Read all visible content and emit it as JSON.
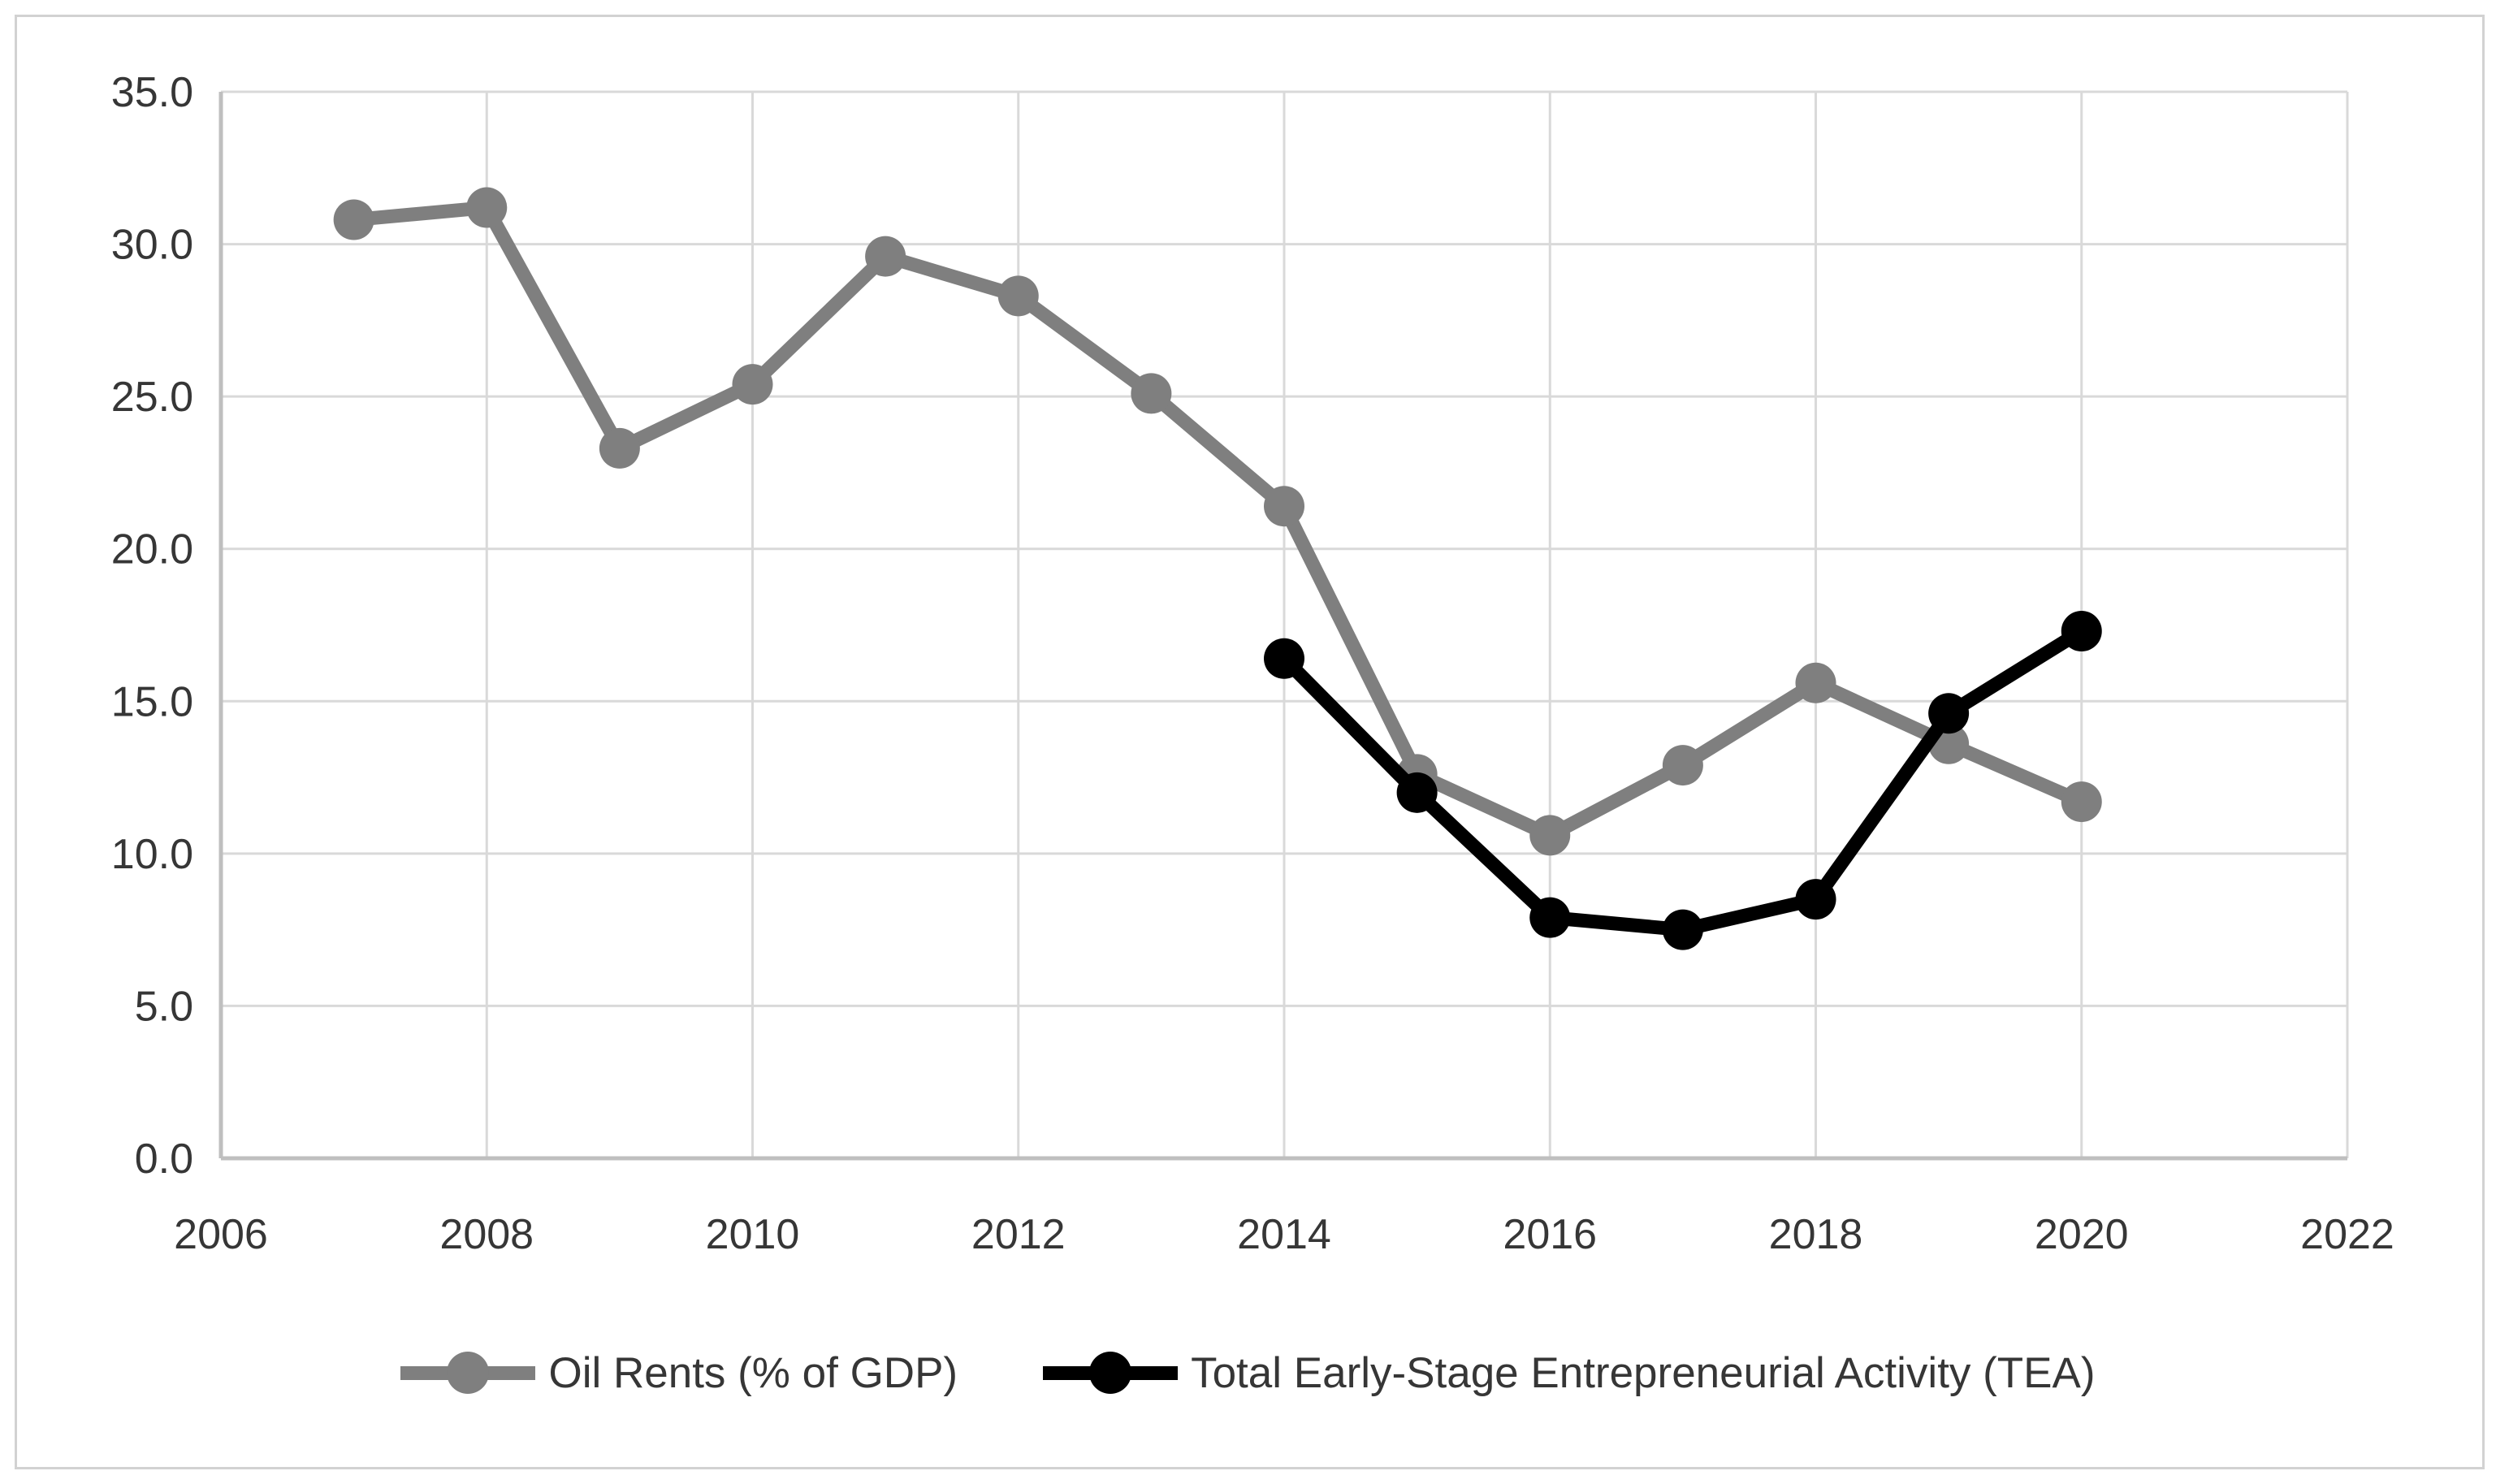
{
  "chart_data": {
    "type": "line",
    "title": "",
    "xlabel": "",
    "ylabel": "",
    "xlim": [
      2006,
      2022
    ],
    "ylim": [
      0,
      35
    ],
    "x_ticks": [
      2006,
      2008,
      2010,
      2012,
      2014,
      2016,
      2018,
      2020,
      2022
    ],
    "y_ticks": [
      "35.0",
      "30.0",
      "25.0",
      "20.0",
      "15.0",
      "10.0",
      "5.0",
      "0.0"
    ],
    "grid": true,
    "legend_position": "bottom",
    "style": {
      "grid_color": "#d9d9d9",
      "axis_color": "#bfbfbf",
      "tick_color": "#363636",
      "background": "#ffffff"
    },
    "series": [
      {
        "name": "Oil Rents (% of GDP)",
        "color": "#7f7f7f",
        "marker": "circle",
        "x": [
          2007,
          2008,
          2009,
          2010,
          2011,
          2012,
          2013,
          2014,
          2015,
          2016,
          2017,
          2018,
          2019,
          2020
        ],
        "values": [
          30.8,
          31.2,
          23.3,
          25.4,
          29.6,
          28.3,
          25.1,
          21.4,
          12.6,
          10.6,
          12.9,
          15.6,
          13.6,
          11.7
        ]
      },
      {
        "name": "Total Early-Stage Entrepreneurial Activity (TEA)",
        "color": "#000000",
        "marker": "circle",
        "x": [
          2014,
          2015,
          2016,
          2017,
          2018,
          2019,
          2020
        ],
        "values": [
          16.4,
          12.0,
          7.9,
          7.5,
          8.5,
          14.6,
          17.3
        ]
      }
    ]
  }
}
